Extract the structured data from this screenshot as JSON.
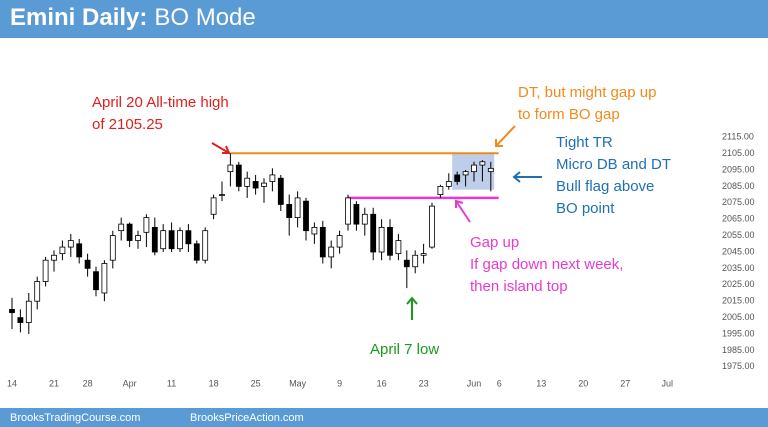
{
  "chart_data": {
    "type": "candlestick",
    "title": [
      "Emini Daily:",
      "BO Mode"
    ],
    "footer": [
      "BrooksTradingCourse.com",
      "BrooksPriceAction.com"
    ],
    "categories": [
      "14",
      null,
      null,
      null,
      null,
      "21",
      null,
      null,
      null,
      "28",
      null,
      null,
      null,
      null,
      "Apr",
      null,
      null,
      null,
      null,
      "11",
      null,
      null,
      null,
      null,
      "18",
      null,
      null,
      null,
      null,
      "25",
      null,
      null,
      null,
      null,
      "May",
      null,
      null,
      null,
      null,
      "9",
      null,
      null,
      null,
      null,
      "16",
      null,
      null,
      null,
      null,
      "23",
      null,
      null,
      null,
      null,
      null,
      "Jun",
      null,
      null,
      "6",
      null,
      null,
      null,
      null,
      "13",
      null,
      null,
      null,
      null,
      "20",
      null,
      null,
      null,
      null,
      "27",
      null,
      null,
      null,
      null,
      "Jul"
    ],
    "series": {
      "open": [
        2010,
        2005,
        2002,
        2015,
        2027,
        2040,
        2044,
        2048,
        2050,
        2040,
        2033,
        2020,
        2040,
        2058,
        2062,
        2052,
        2057,
        2060,
        2047,
        2058,
        2047,
        2058,
        2050,
        2040,
        2068,
        2080,
        2094,
        2098,
        2085,
        2088,
        2085,
        2088,
        2090,
        2074,
        2066,
        2076,
        2056,
        2060,
        2042,
        2048,
        2062,
        2074,
        2062,
        2068,
        2045,
        2060,
        2044,
        2040,
        2036,
        2043,
        2048,
        2080,
        2085,
        2092,
        2092,
        2094,
        2098,
        2094,
        null,
        null,
        null,
        null,
        null,
        null,
        null,
        null,
        null,
        null,
        null,
        null,
        null,
        null,
        null,
        null,
        null,
        null,
        null,
        null,
        null
      ],
      "high": [
        2017,
        2010,
        2020,
        2030,
        2042,
        2046,
        2052,
        2056,
        2053,
        2044,
        2036,
        2040,
        2058,
        2066,
        2063,
        2058,
        2068,
        2066,
        2062,
        2063,
        2060,
        2062,
        2052,
        2060,
        2080,
        2088,
        2105.25,
        2100,
        2094,
        2092,
        2090,
        2096,
        2092,
        2080,
        2082,
        2078,
        2063,
        2064,
        2052,
        2058,
        2080,
        2076,
        2072,
        2072,
        2065,
        2065,
        2056,
        2046,
        2046,
        2050,
        2075,
        2086,
        2093,
        2094,
        2095,
        2100,
        2101,
        2100,
        null,
        null,
        null,
        null,
        null,
        null,
        null,
        null,
        null,
        null,
        null,
        null,
        null,
        null,
        null,
        null,
        null,
        null,
        null,
        null,
        null
      ],
      "low": [
        1998,
        1996,
        1995,
        2010,
        2024,
        2033,
        2040,
        2042,
        2038,
        2030,
        2018,
        2015,
        2035,
        2052,
        2048,
        2047,
        2048,
        2043,
        2045,
        2045,
        2045,
        2045,
        2038,
        2038,
        2065,
        2076,
        2085,
        2082,
        2078,
        2080,
        2075,
        2082,
        2070,
        2055,
        2060,
        2052,
        2050,
        2038,
        2035,
        2044,
        2058,
        2058,
        2055,
        2040,
        2040,
        2040,
        2040,
        2023,
        2032,
        2038,
        2047,
        2078,
        2083,
        2086,
        2085,
        2088,
        2088,
        2082,
        null,
        null,
        null,
        null,
        null,
        null,
        null,
        null,
        null,
        null,
        null,
        null,
        null,
        null,
        null,
        null,
        null,
        null,
        null,
        null,
        null
      ],
      "close": [
        2008,
        2002,
        2015,
        2027,
        2040,
        2043,
        2048,
        2052,
        2042,
        2035,
        2022,
        2038,
        2055,
        2062,
        2052,
        2055,
        2066,
        2045,
        2058,
        2047,
        2058,
        2050,
        2040,
        2058,
        2078,
        2080,
        2098,
        2085,
        2090,
        2084,
        2087,
        2092,
        2074,
        2066,
        2078,
        2058,
        2060,
        2042,
        2048,
        2055,
        2078,
        2062,
        2068,
        2045,
        2060,
        2043,
        2052,
        2036,
        2043,
        2044,
        2073,
        2085,
        2088,
        2088,
        2094,
        2098,
        2100,
        2096,
        null,
        null,
        null,
        null,
        null,
        null,
        null,
        null,
        null,
        null,
        null,
        null,
        null,
        null,
        null,
        null,
        null,
        null,
        null,
        null,
        null
      ]
    },
    "up_color": "#ffffff",
    "down_color": "#000000",
    "ylim": [
      1970,
      2120
    ],
    "yticks": [
      {
        "value": 1975,
        "label": "1975.00"
      },
      {
        "value": 1985,
        "label": "1985.00"
      },
      {
        "value": 1995,
        "label": "1995.00"
      },
      {
        "value": 2005,
        "label": "2005.00"
      },
      {
        "value": 2015,
        "label": "2015.00"
      },
      {
        "value": 2025,
        "label": "2025.00"
      },
      {
        "value": 2035,
        "label": "2035.00"
      },
      {
        "value": 2045,
        "label": "2045.00"
      },
      {
        "value": 2055,
        "label": "2055.00"
      },
      {
        "value": 2065,
        "label": "2065.00"
      },
      {
        "value": 2075,
        "label": "2075.00"
      },
      {
        "value": 2085,
        "label": "2085.00"
      },
      {
        "value": 2095,
        "label": "2095.00"
      },
      {
        "value": 2105,
        "label": "2105.00"
      },
      {
        "value": 2115,
        "label": "2115.00"
      }
    ],
    "annotations": [
      {
        "text": [
          "April 20 All-time high",
          "of 2105.25"
        ],
        "color": "#e0201c"
      },
      {
        "text": [
          "DT, but might gap up",
          "to form BO gap"
        ],
        "color": "#f08a1c"
      },
      {
        "text": [
          "Tight TR",
          "Micro DB and DT",
          "Bull flag above",
          "BO point"
        ],
        "color": "#1f6fb5"
      },
      {
        "text": [
          "Gap up",
          "If gap down next week,",
          "then island top"
        ],
        "color": "#e83ad0"
      },
      {
        "text": [
          "April 7 low"
        ],
        "color": "#1a9a1a"
      }
    ]
  }
}
